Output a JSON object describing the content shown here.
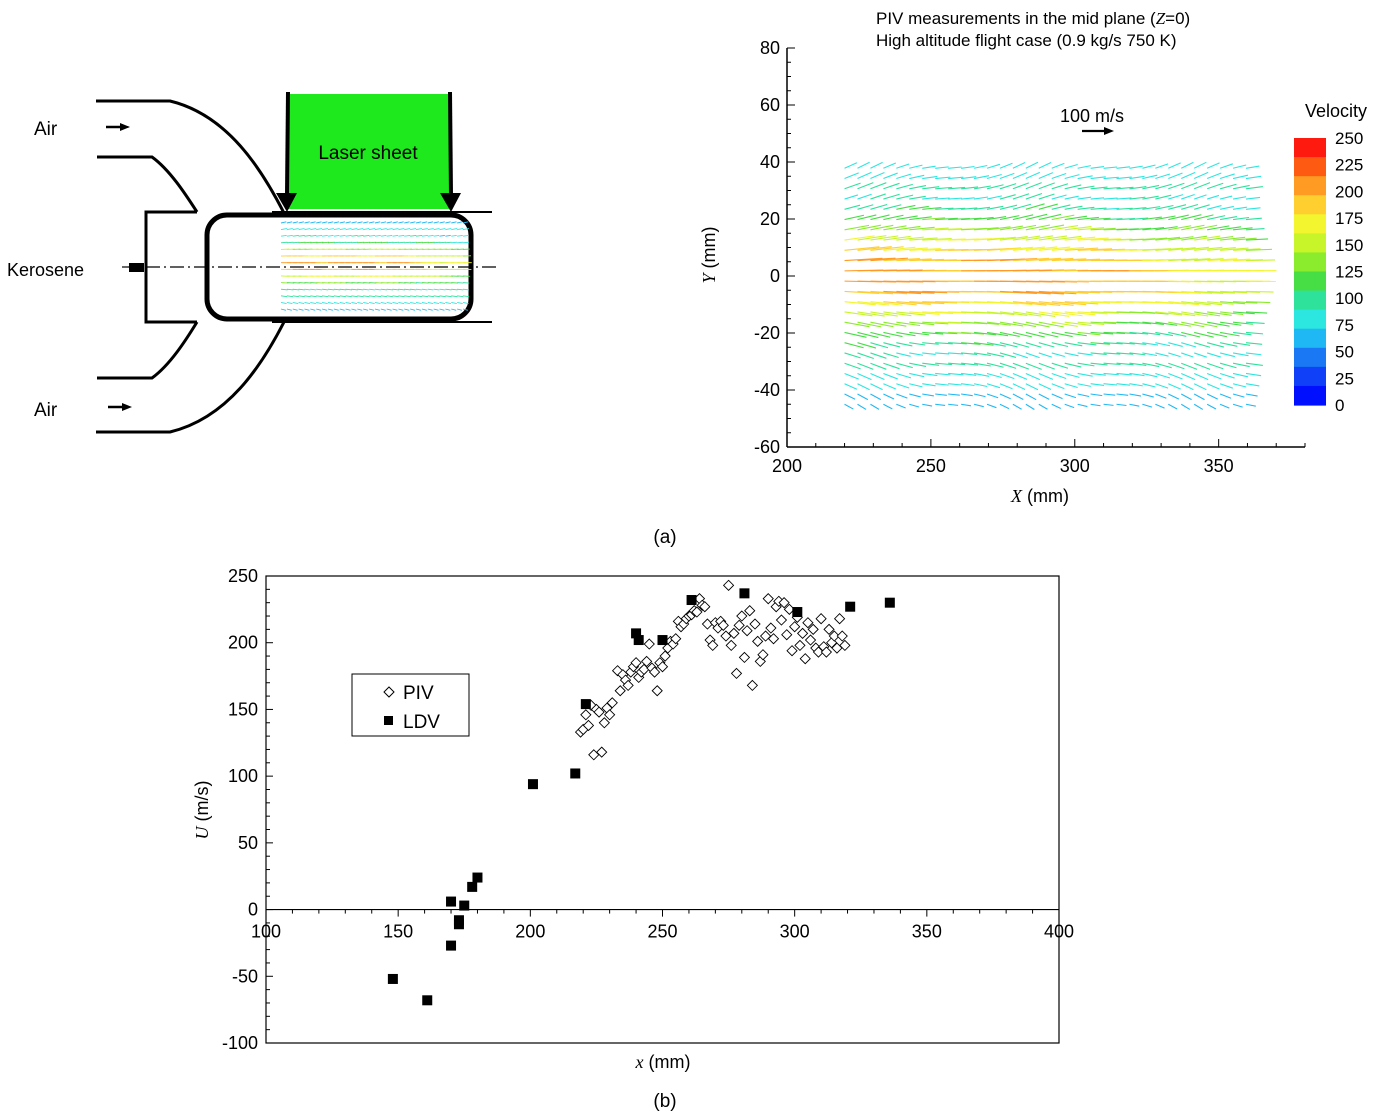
{
  "panel_a": {
    "schematic": {
      "air_top": "Air",
      "air_bottom": "Air",
      "kerosene": "Kerosene",
      "laser_sheet": "Laser sheet",
      "laser_color": "#1de91d"
    },
    "caption": "(a)"
  },
  "panel_b": {
    "caption": "(b)"
  },
  "chart_data": [
    {
      "type": "vector_field",
      "title_line1_prefix": "PIV measurements in the mid plane (",
      "title_line1_var": "Z",
      "title_line1_suffix": "=0)",
      "title_line2": "High altitude flight case (0.9 kg/s 750 K)",
      "xlabel_var": "X",
      "xlabel_unit": " (mm)",
      "ylabel_var": "Y",
      "ylabel_unit": " (mm)",
      "xlim": [
        200,
        380
      ],
      "ylim": [
        -60,
        80
      ],
      "x_ticks": [
        "200",
        "250",
        "300",
        "350"
      ],
      "y_ticks": [
        "80",
        "60",
        "40",
        "20",
        "0",
        "-20",
        "-40",
        "-60"
      ],
      "reference_vector_label": "100 m/s",
      "reference_vector_value": 100,
      "field_extent": {
        "x": [
          220,
          362
        ],
        "y": [
          -45,
          41
        ]
      },
      "colorbar": {
        "title": "Velocity",
        "ticks": [
          "250",
          "225",
          "200",
          "175",
          "150",
          "125",
          "100",
          "75",
          "50",
          "25",
          "0"
        ],
        "range": [
          0,
          250
        ],
        "colors": [
          "#ff1a10",
          "#ff5a12",
          "#ff9a22",
          "#ffcf30",
          "#f3f52e",
          "#c8f52a",
          "#8aec2c",
          "#46de44",
          "#2ee29c",
          "#2ce6e0",
          "#20b8f4",
          "#1a78f4",
          "#1040f8",
          "#0010ff"
        ]
      }
    },
    {
      "type": "scatter",
      "xlabel_var": "x",
      "xlabel_unit": " (mm)",
      "ylabel_var": "U",
      "ylabel_unit": " (m/s)",
      "xlim": [
        100,
        400
      ],
      "ylim": [
        -100,
        250
      ],
      "x_ticks": [
        "100",
        "150",
        "200",
        "250",
        "300",
        "350",
        "400"
      ],
      "y_ticks": [
        "250",
        "200",
        "150",
        "100",
        "50",
        "0",
        "-50",
        "-100"
      ],
      "legend": {
        "placement": "left",
        "entries": [
          "PIV",
          "LDV"
        ]
      },
      "series": [
        {
          "name": "PIV",
          "marker": "open-diamond",
          "points": [
            [
              219,
              133
            ],
            [
              220,
              135
            ],
            [
              221,
              146
            ],
            [
              222,
              138
            ],
            [
              223,
              153
            ],
            [
              224,
              116
            ],
            [
              225,
              150
            ],
            [
              226,
              148
            ],
            [
              227,
              118
            ],
            [
              228,
              140
            ],
            [
              229,
              151
            ],
            [
              230,
              146
            ],
            [
              231,
              155
            ],
            [
              233,
              179
            ],
            [
              234,
              164
            ],
            [
              235,
              176
            ],
            [
              236,
              172
            ],
            [
              237,
              168
            ],
            [
              238,
              178
            ],
            [
              239,
              182
            ],
            [
              240,
              185
            ],
            [
              241,
              174
            ],
            [
              242,
              178
            ],
            [
              243,
              180
            ],
            [
              244,
              186
            ],
            [
              245,
              199
            ],
            [
              246,
              181
            ],
            [
              247,
              178
            ],
            [
              248,
              164
            ],
            [
              249,
              185
            ],
            [
              250,
              182
            ],
            [
              251,
              190
            ],
            [
              252,
              196
            ],
            [
              253,
              201
            ],
            [
              254,
              199
            ],
            [
              255,
              203
            ],
            [
              256,
              216
            ],
            [
              257,
              212
            ],
            [
              258,
              214
            ],
            [
              259,
              218
            ],
            [
              260,
              220
            ],
            [
              261,
              221
            ],
            [
              262,
              224
            ],
            [
              263,
              223
            ],
            [
              264,
              233
            ],
            [
              265,
              228
            ],
            [
              266,
              227
            ],
            [
              267,
              214
            ],
            [
              268,
              202
            ],
            [
              269,
              198
            ],
            [
              270,
              215
            ],
            [
              271,
              211
            ],
            [
              272,
              216
            ],
            [
              273,
              213
            ],
            [
              274,
              205
            ],
            [
              275,
              243
            ],
            [
              276,
              198
            ],
            [
              277,
              207
            ],
            [
              278,
              177
            ],
            [
              279,
              213
            ],
            [
              280,
              220
            ],
            [
              281,
              189
            ],
            [
              282,
              209
            ],
            [
              283,
              224
            ],
            [
              284,
              168
            ],
            [
              285,
              214
            ],
            [
              286,
              201
            ],
            [
              287,
              186
            ],
            [
              288,
              191
            ],
            [
              289,
              205
            ],
            [
              290,
              233
            ],
            [
              291,
              211
            ],
            [
              292,
              203
            ],
            [
              293,
              227
            ],
            [
              294,
              231
            ],
            [
              295,
              217
            ],
            [
              296,
              230
            ],
            [
              297,
              206
            ],
            [
              298,
              225
            ],
            [
              299,
              194
            ],
            [
              300,
              212
            ],
            [
              301,
              219
            ],
            [
              302,
              198
            ],
            [
              303,
              207
            ],
            [
              304,
              188
            ],
            [
              305,
              215
            ],
            [
              306,
              202
            ],
            [
              307,
              210
            ],
            [
              308,
              196
            ],
            [
              309,
              193
            ],
            [
              310,
              218
            ],
            [
              311,
              197
            ],
            [
              312,
              193
            ],
            [
              313,
              210
            ],
            [
              314,
              200
            ],
            [
              315,
              205
            ],
            [
              316,
              196
            ],
            [
              317,
              218
            ],
            [
              318,
              205
            ],
            [
              319,
              198
            ]
          ]
        },
        {
          "name": "LDV",
          "marker": "filled-square",
          "points": [
            [
              148,
              -52
            ],
            [
              161,
              -68
            ],
            [
              170,
              -27
            ],
            [
              170,
              6
            ],
            [
              173,
              -8
            ],
            [
              173,
              -11
            ],
            [
              175,
              3
            ],
            [
              178,
              17
            ],
            [
              180,
              24
            ],
            [
              201,
              94
            ],
            [
              217,
              102
            ],
            [
              221,
              154
            ],
            [
              240,
              207
            ],
            [
              241,
              202
            ],
            [
              250,
              202
            ],
            [
              261,
              232
            ],
            [
              281,
              237
            ],
            [
              301,
              223
            ],
            [
              321,
              227
            ],
            [
              336,
              230
            ]
          ]
        }
      ]
    }
  ]
}
